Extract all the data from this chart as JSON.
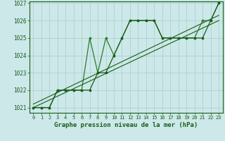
{
  "title": "Graphe pression niveau de la mer (hPa)",
  "bg_color": "#cce8e8",
  "grid_color": "#aacccc",
  "line_color_dark": "#1a5c1a",
  "line_color_mid": "#2d7a2d",
  "xlim": [
    -0.5,
    23.5
  ],
  "ylim": [
    1020.7,
    1027.1
  ],
  "yticks": [
    1021,
    1022,
    1023,
    1024,
    1025,
    1026,
    1027
  ],
  "xticks": [
    0,
    1,
    2,
    3,
    4,
    5,
    6,
    7,
    8,
    9,
    10,
    11,
    12,
    13,
    14,
    15,
    16,
    17,
    18,
    19,
    20,
    21,
    22,
    23
  ],
  "series1_x": [
    0,
    1,
    2,
    3,
    4,
    5,
    6,
    7,
    8,
    9,
    10,
    11,
    12,
    13,
    14,
    15,
    16,
    17,
    18,
    19,
    20,
    21,
    22,
    23
  ],
  "series1_y": [
    1021,
    1021,
    1021,
    1022,
    1022,
    1022,
    1022,
    1025,
    1023,
    1025,
    1024,
    1025,
    1026,
    1026,
    1026,
    1026,
    1025,
    1025,
    1025,
    1025,
    1025,
    1026,
    1026,
    1027
  ],
  "series2_x": [
    0,
    1,
    2,
    3,
    4,
    5,
    6,
    7,
    8,
    9,
    10,
    11,
    12,
    13,
    14,
    15,
    16,
    17,
    18,
    19,
    20,
    21,
    22,
    23
  ],
  "series2_y": [
    1021,
    1021,
    1021,
    1022,
    1022,
    1022,
    1022,
    1022,
    1023,
    1023,
    1024,
    1025,
    1026,
    1026,
    1026,
    1026,
    1025,
    1025,
    1025,
    1025,
    1025,
    1025,
    1026,
    1027
  ],
  "trend1_x": [
    0,
    23
  ],
  "trend1_y": [
    1021.0,
    1026.0
  ],
  "trend2_x": [
    0,
    23
  ],
  "trend2_y": [
    1021.2,
    1026.3
  ]
}
